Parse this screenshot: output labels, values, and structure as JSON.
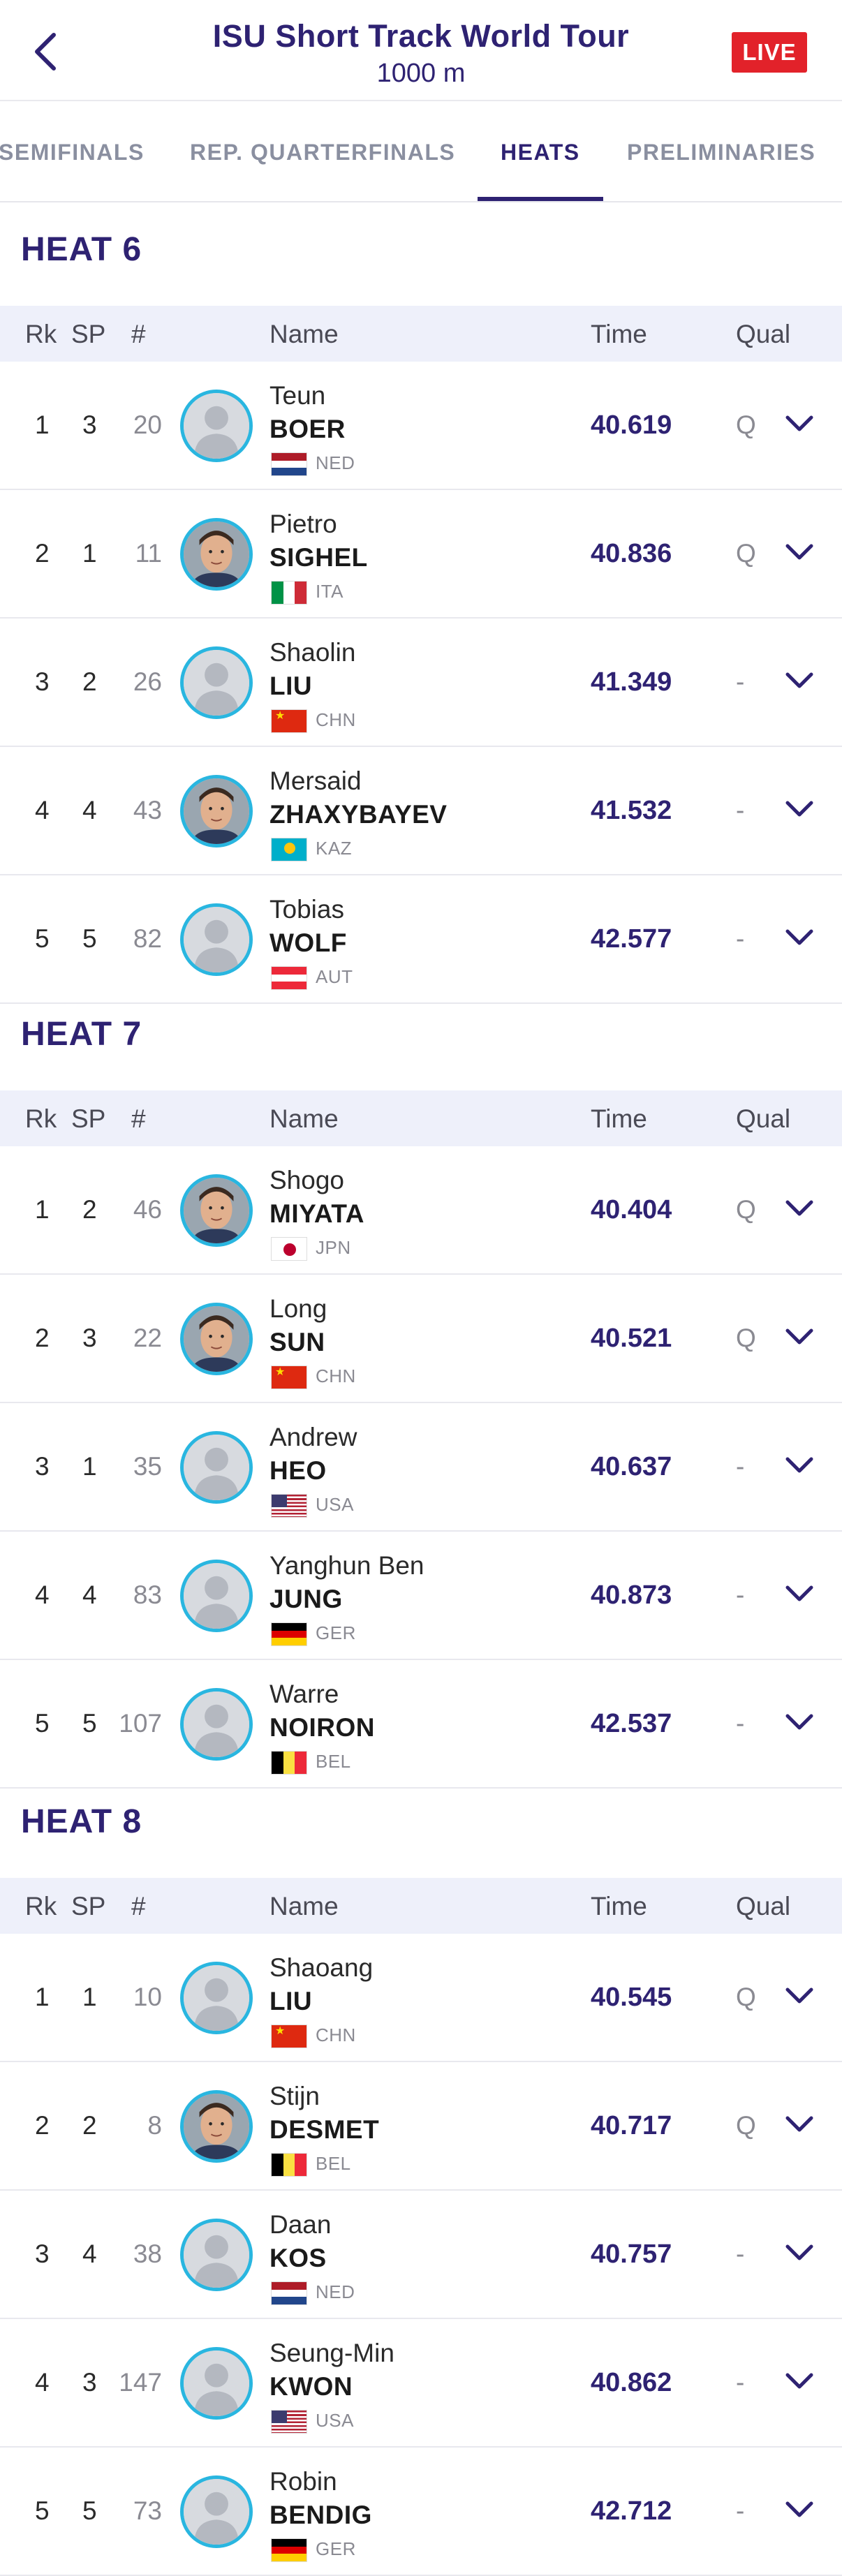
{
  "header": {
    "title": "ISU Short Track World Tour",
    "subtitle": "1000 m",
    "live": "LIVE"
  },
  "tabs": [
    "SEMIFINALS",
    "REP. QUARTERFINALS",
    "HEATS",
    "PRELIMINARIES"
  ],
  "active_tab": "HEATS",
  "columns": {
    "rk": "Rk",
    "sp": "SP",
    "num": "#",
    "name": "Name",
    "time": "Time",
    "qual": "Qual"
  },
  "colors": {
    "accent": "#2e2272",
    "live": "#e2222a",
    "avatar_ring": "#29b6e0",
    "header_band": "#eef0fa"
  },
  "heats": [
    {
      "title": "HEAT 6",
      "rows": [
        {
          "rk": "1",
          "sp": "3",
          "num": "20",
          "first": "Teun",
          "last": "BOER",
          "country": "NED",
          "time": "40.619",
          "qual": "Q",
          "photo": false
        },
        {
          "rk": "2",
          "sp": "1",
          "num": "11",
          "first": "Pietro",
          "last": "SIGHEL",
          "country": "ITA",
          "time": "40.836",
          "qual": "Q",
          "photo": true
        },
        {
          "rk": "3",
          "sp": "2",
          "num": "26",
          "first": "Shaolin",
          "last": "LIU",
          "country": "CHN",
          "time": "41.349",
          "qual": "-",
          "photo": false
        },
        {
          "rk": "4",
          "sp": "4",
          "num": "43",
          "first": "Mersaid",
          "last": "ZHAXYBAYEV",
          "country": "KAZ",
          "time": "41.532",
          "qual": "-",
          "photo": true
        },
        {
          "rk": "5",
          "sp": "5",
          "num": "82",
          "first": "Tobias",
          "last": "WOLF",
          "country": "AUT",
          "time": "42.577",
          "qual": "-",
          "photo": false
        }
      ]
    },
    {
      "title": "HEAT 7",
      "rows": [
        {
          "rk": "1",
          "sp": "2",
          "num": "46",
          "first": "Shogo",
          "last": "MIYATA",
          "country": "JPN",
          "time": "40.404",
          "qual": "Q",
          "photo": true
        },
        {
          "rk": "2",
          "sp": "3",
          "num": "22",
          "first": "Long",
          "last": "SUN",
          "country": "CHN",
          "time": "40.521",
          "qual": "Q",
          "photo": true
        },
        {
          "rk": "3",
          "sp": "1",
          "num": "35",
          "first": "Andrew",
          "last": "HEO",
          "country": "USA",
          "time": "40.637",
          "qual": "-",
          "photo": false
        },
        {
          "rk": "4",
          "sp": "4",
          "num": "83",
          "first": "Yanghun Ben",
          "last": "JUNG",
          "country": "GER",
          "time": "40.873",
          "qual": "-",
          "photo": false
        },
        {
          "rk": "5",
          "sp": "5",
          "num": "107",
          "first": "Warre",
          "last": "NOIRON",
          "country": "BEL",
          "time": "42.537",
          "qual": "-",
          "photo": false
        }
      ]
    },
    {
      "title": "HEAT 8",
      "rows": [
        {
          "rk": "1",
          "sp": "1",
          "num": "10",
          "first": "Shaoang",
          "last": "LIU",
          "country": "CHN",
          "time": "40.545",
          "qual": "Q",
          "photo": false
        },
        {
          "rk": "2",
          "sp": "2",
          "num": "8",
          "first": "Stijn",
          "last": "DESMET",
          "country": "BEL",
          "time": "40.717",
          "qual": "Q",
          "photo": true
        },
        {
          "rk": "3",
          "sp": "4",
          "num": "38",
          "first": "Daan",
          "last": "KOS",
          "country": "NED",
          "time": "40.757",
          "qual": "-",
          "photo": false
        },
        {
          "rk": "4",
          "sp": "3",
          "num": "147",
          "first": "Seung-Min",
          "last": "KWON",
          "country": "USA",
          "time": "40.862",
          "qual": "-",
          "photo": false
        },
        {
          "rk": "5",
          "sp": "5",
          "num": "73",
          "first": "Robin",
          "last": "BENDIG",
          "country": "GER",
          "time": "42.712",
          "qual": "-",
          "photo": false
        }
      ]
    }
  ]
}
